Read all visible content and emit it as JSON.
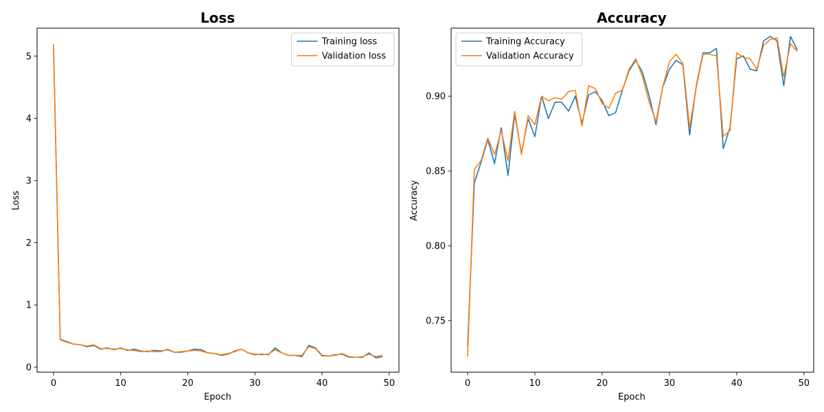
{
  "chart_data": [
    {
      "type": "line",
      "title": "Loss",
      "xlabel": "Epoch",
      "ylabel": "Loss",
      "xlim": [
        -2.45,
        51.45
      ],
      "ylim": [
        -0.08,
        5.45
      ],
      "xticks": [
        0,
        10,
        20,
        30,
        40,
        50
      ],
      "yticks": [
        0,
        1,
        2,
        3,
        4,
        5
      ],
      "xtick_labels": [
        "0",
        "10",
        "20",
        "30",
        "40",
        "50"
      ],
      "ytick_labels": [
        "0",
        "1",
        "2",
        "3",
        "4",
        "5"
      ],
      "grid": false,
      "legend": "top-right",
      "series": [
        {
          "name": "Training loss",
          "color": "#1f77b4",
          "x": [
            0,
            1,
            2,
            3,
            4,
            5,
            6,
            7,
            8,
            9,
            10,
            11,
            12,
            13,
            14,
            15,
            16,
            17,
            18,
            19,
            20,
            21,
            22,
            23,
            24,
            25,
            26,
            27,
            28,
            29,
            30,
            31,
            32,
            33,
            34,
            35,
            36,
            37,
            38,
            39,
            40,
            41,
            42,
            43,
            44,
            45,
            46,
            47,
            48,
            49
          ],
          "values": [
            5.12,
            0.45,
            0.41,
            0.37,
            0.36,
            0.33,
            0.35,
            0.29,
            0.31,
            0.28,
            0.31,
            0.27,
            0.29,
            0.26,
            0.25,
            0.27,
            0.26,
            0.28,
            0.24,
            0.24,
            0.26,
            0.29,
            0.28,
            0.23,
            0.22,
            0.19,
            0.21,
            0.26,
            0.29,
            0.23,
            0.2,
            0.21,
            0.2,
            0.31,
            0.23,
            0.19,
            0.19,
            0.17,
            0.35,
            0.31,
            0.19,
            0.18,
            0.2,
            0.21,
            0.16,
            0.16,
            0.16,
            0.23,
            0.15,
            0.17
          ]
        },
        {
          "name": "Validation loss",
          "color": "#ff7f0e",
          "x": [
            0,
            1,
            2,
            3,
            4,
            5,
            6,
            7,
            8,
            9,
            10,
            11,
            12,
            13,
            14,
            15,
            16,
            17,
            18,
            19,
            20,
            21,
            22,
            23,
            24,
            25,
            26,
            27,
            28,
            29,
            30,
            31,
            32,
            33,
            34,
            35,
            36,
            37,
            38,
            39,
            40,
            41,
            42,
            43,
            44,
            45,
            46,
            47,
            48,
            49
          ],
          "values": [
            5.2,
            0.44,
            0.4,
            0.37,
            0.36,
            0.34,
            0.36,
            0.3,
            0.3,
            0.29,
            0.3,
            0.28,
            0.27,
            0.25,
            0.26,
            0.25,
            0.25,
            0.29,
            0.24,
            0.25,
            0.26,
            0.27,
            0.26,
            0.23,
            0.22,
            0.2,
            0.22,
            0.25,
            0.29,
            0.23,
            0.21,
            0.2,
            0.21,
            0.28,
            0.23,
            0.19,
            0.19,
            0.19,
            0.33,
            0.3,
            0.18,
            0.18,
            0.19,
            0.22,
            0.17,
            0.16,
            0.17,
            0.21,
            0.17,
            0.19
          ]
        }
      ]
    },
    {
      "type": "line",
      "title": "Accuracy",
      "xlabel": "Epoch",
      "ylabel": "Accuracy",
      "xlim": [
        -2.45,
        51.45
      ],
      "ylim": [
        0.7155,
        0.9455
      ],
      "xticks": [
        0,
        10,
        20,
        30,
        40,
        50
      ],
      "yticks": [
        0.75,
        0.8,
        0.85,
        0.9
      ],
      "xtick_labels": [
        "0",
        "10",
        "20",
        "30",
        "40",
        "50"
      ],
      "ytick_labels": [
        "0.75",
        "0.80",
        "0.85",
        "0.90"
      ],
      "grid": false,
      "legend": "top-left",
      "series": [
        {
          "name": "Training Accuracy",
          "color": "#1f77b4",
          "x": [
            0,
            1,
            2,
            3,
            4,
            5,
            6,
            7,
            8,
            9,
            10,
            11,
            12,
            13,
            14,
            15,
            16,
            17,
            18,
            19,
            20,
            21,
            22,
            23,
            24,
            25,
            26,
            27,
            28,
            29,
            30,
            31,
            32,
            33,
            34,
            35,
            36,
            37,
            38,
            39,
            40,
            41,
            42,
            43,
            44,
            45,
            46,
            47,
            48,
            49
          ],
          "values": [
            0.733,
            0.842,
            0.856,
            0.871,
            0.855,
            0.879,
            0.847,
            0.888,
            0.862,
            0.885,
            0.873,
            0.9,
            0.885,
            0.896,
            0.896,
            0.89,
            0.9,
            0.882,
            0.901,
            0.903,
            0.897,
            0.887,
            0.889,
            0.904,
            0.917,
            0.924,
            0.916,
            0.9,
            0.881,
            0.906,
            0.918,
            0.924,
            0.921,
            0.874,
            0.907,
            0.929,
            0.929,
            0.932,
            0.865,
            0.879,
            0.925,
            0.927,
            0.918,
            0.917,
            0.937,
            0.94,
            0.937,
            0.907,
            0.94,
            0.931
          ]
        },
        {
          "name": "Validation Accuracy",
          "color": "#ff7f0e",
          "x": [
            0,
            1,
            2,
            3,
            4,
            5,
            6,
            7,
            8,
            9,
            10,
            11,
            12,
            13,
            14,
            15,
            16,
            17,
            18,
            19,
            20,
            21,
            22,
            23,
            24,
            25,
            26,
            27,
            28,
            29,
            30,
            31,
            32,
            33,
            34,
            35,
            36,
            37,
            38,
            39,
            40,
            41,
            42,
            43,
            44,
            45,
            46,
            47,
            48,
            49
          ],
          "values": [
            0.726,
            0.851,
            0.857,
            0.872,
            0.861,
            0.877,
            0.857,
            0.89,
            0.861,
            0.887,
            0.881,
            0.9,
            0.897,
            0.899,
            0.898,
            0.903,
            0.904,
            0.88,
            0.907,
            0.905,
            0.895,
            0.892,
            0.902,
            0.904,
            0.918,
            0.925,
            0.913,
            0.896,
            0.883,
            0.906,
            0.923,
            0.928,
            0.922,
            0.879,
            0.906,
            0.928,
            0.928,
            0.927,
            0.873,
            0.877,
            0.929,
            0.926,
            0.925,
            0.918,
            0.934,
            0.938,
            0.939,
            0.913,
            0.935,
            0.93
          ]
        }
      ]
    }
  ]
}
